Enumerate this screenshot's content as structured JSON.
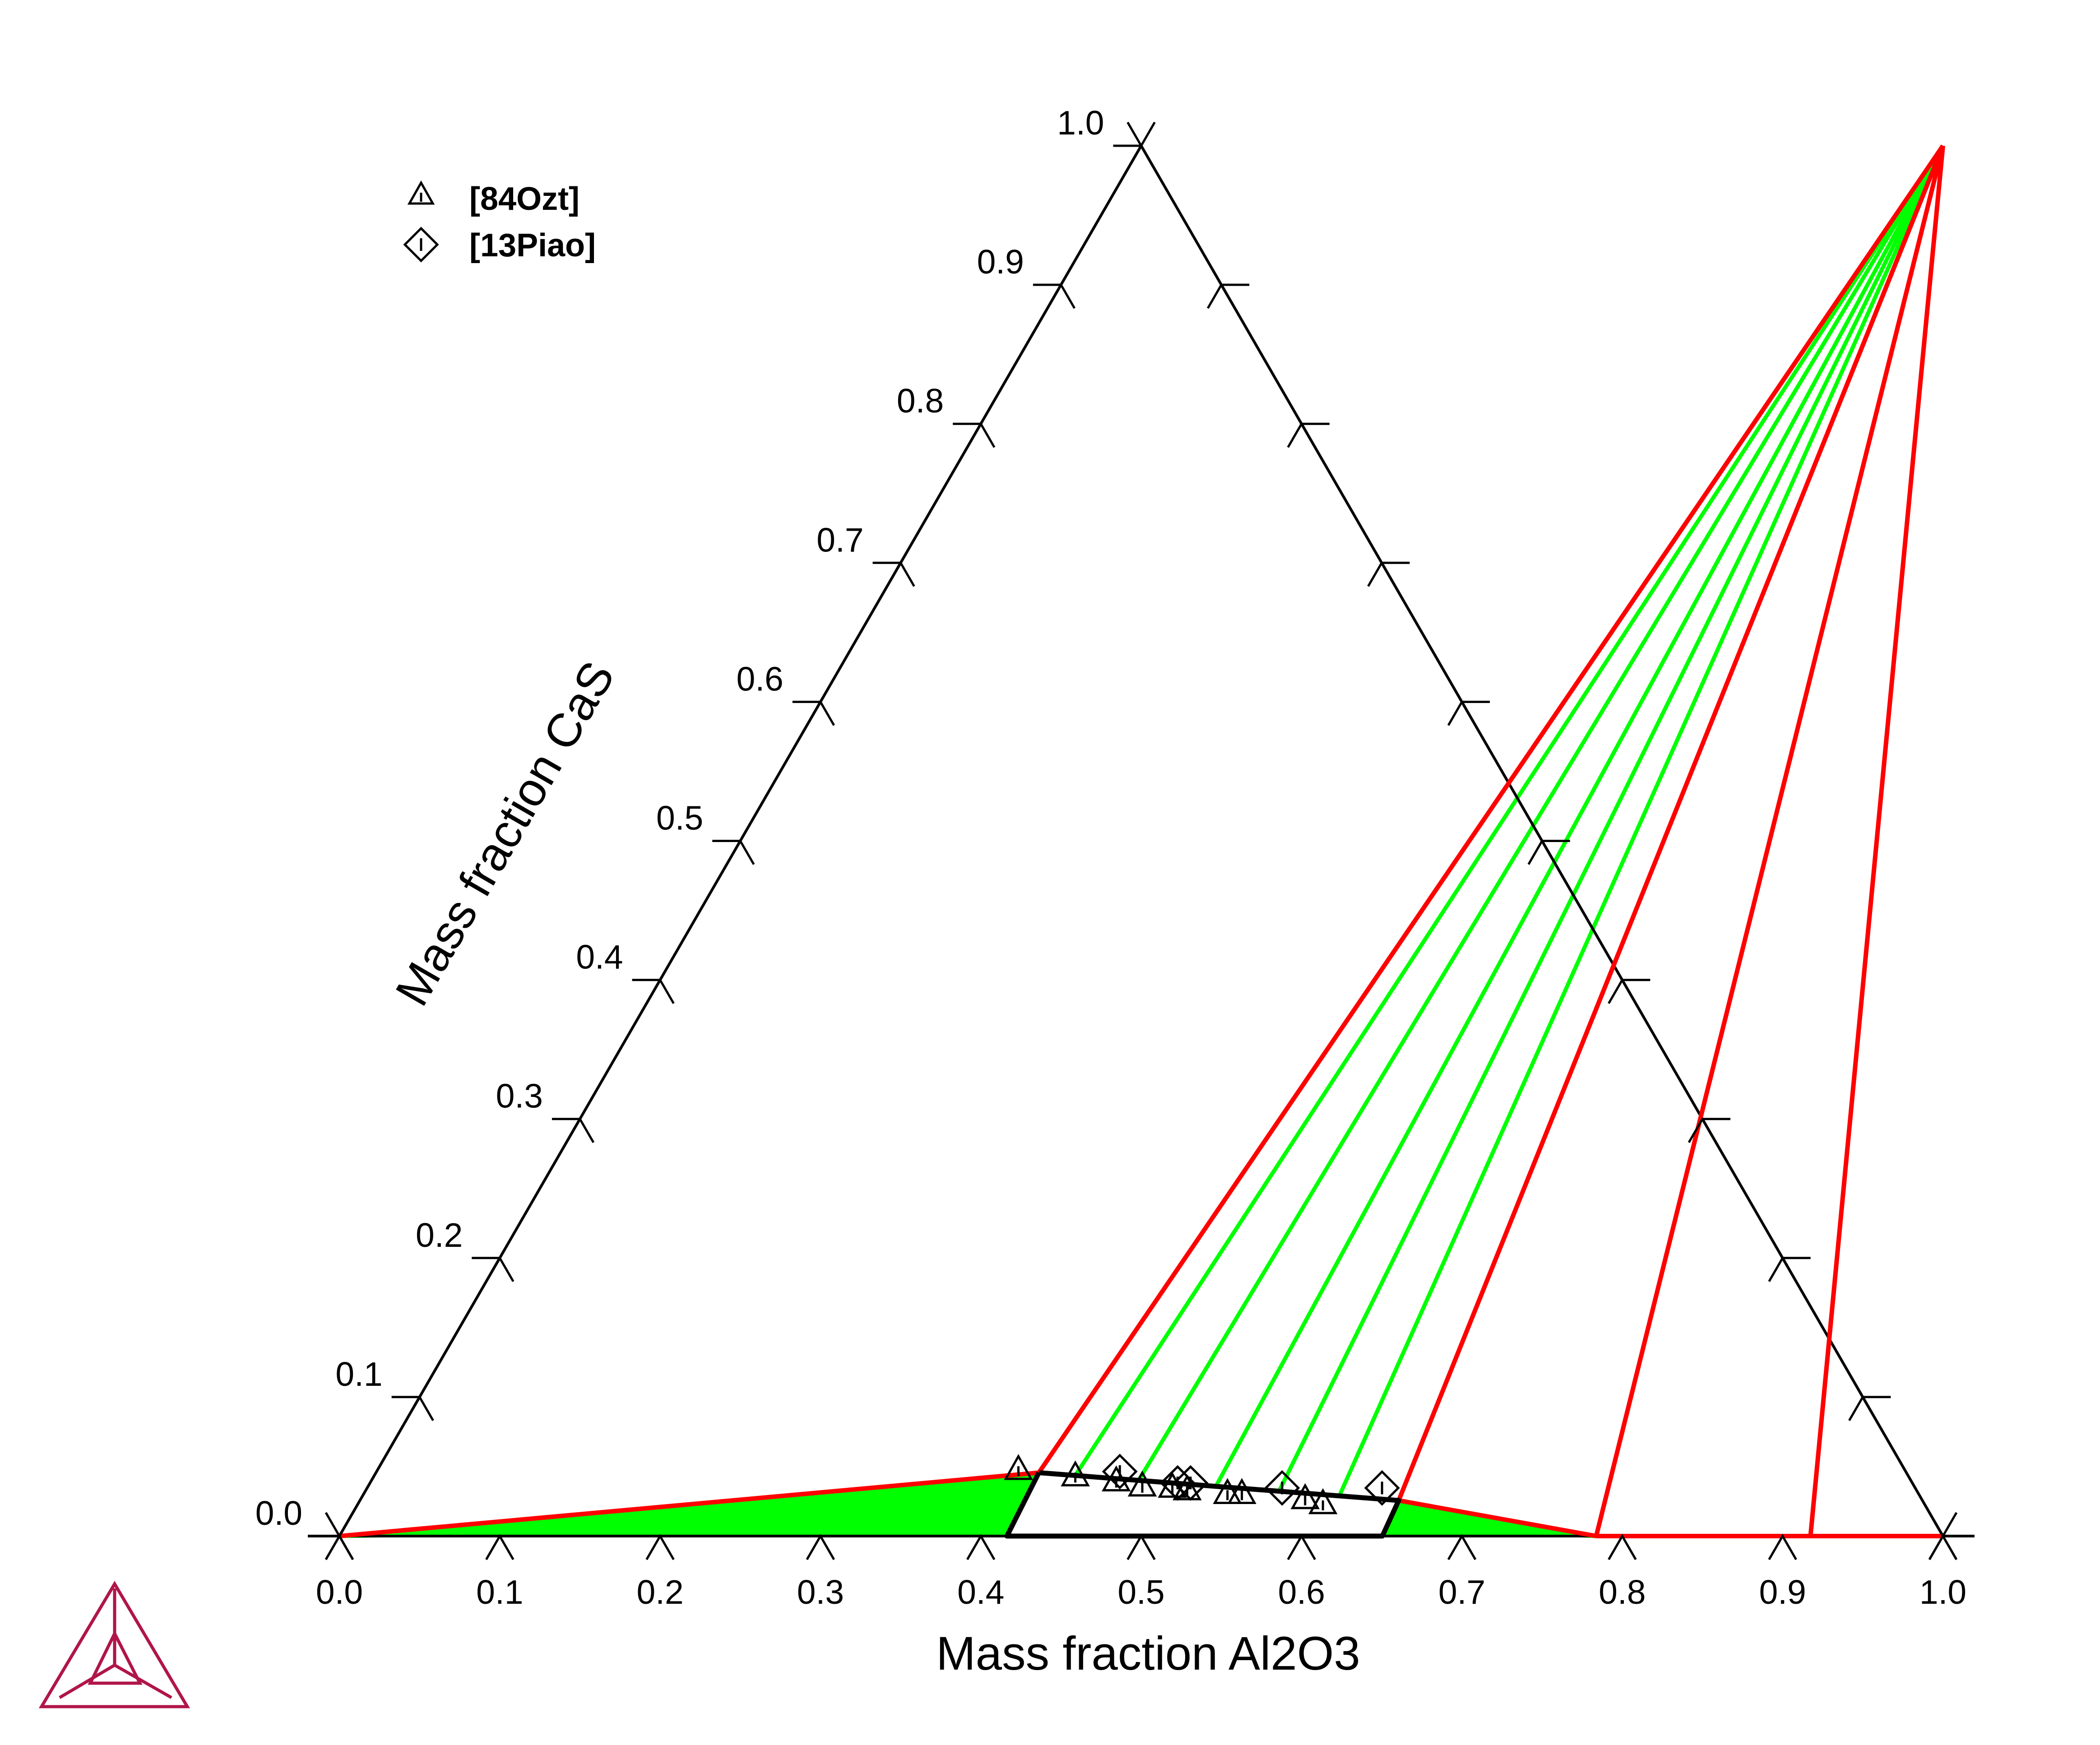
{
  "chart_data": {
    "type": "ternary",
    "title": "",
    "xlabel": "Mass fraction Al2O3",
    "ylabel": "Mass fraction CaS",
    "xlim": [
      0,
      1
    ],
    "ylim": [
      0,
      1
    ],
    "x_ticks": [
      "0.0",
      "0.1",
      "0.2",
      "0.3",
      "0.4",
      "0.5",
      "0.6",
      "0.7",
      "0.8",
      "0.9",
      "1.0"
    ],
    "y_ticks": [
      "0.0",
      "0.1",
      "0.2",
      "0.3",
      "0.4",
      "0.5",
      "0.6",
      "0.7",
      "0.8",
      "0.9",
      "1.0"
    ],
    "legend": [
      {
        "name": "[84Ozt]",
        "marker": "triangle"
      },
      {
        "name": "[13Piao]",
        "marker": "diamond"
      }
    ],
    "phase_boundaries": [
      {
        "color": "#ff0000",
        "points": [
          [
            0.0,
            0.0
          ],
          [
            0.4134,
            0.0456
          ]
        ]
      },
      {
        "color": "#ff0000",
        "points": [
          [
            0.4134,
            0.0456
          ],
          [
            0.5,
            1.0
          ]
        ]
      },
      {
        "color": "#ff0000",
        "points": [
          [
            0.6478,
            0.0256
          ],
          [
            0.5,
            1.0
          ]
        ]
      },
      {
        "color": "#ff0000",
        "points": [
          [
            0.6478,
            0.0256
          ],
          [
            0.7838,
            0.0
          ]
        ]
      },
      {
        "color": "#ff0000",
        "points": [
          [
            0.5,
            1.0
          ],
          [
            0.7838,
            0.0
          ]
        ]
      },
      {
        "color": "#ff0000",
        "points": [
          [
            0.5,
            1.0
          ],
          [
            0.9174,
            0.0
          ]
        ]
      },
      {
        "color": "#ff0000",
        "points": [
          [
            0.7838,
            0.0
          ],
          [
            1.0,
            0.0
          ]
        ]
      },
      {
        "color": "#000000",
        "points": [
          [
            0.4134,
            0.0456
          ],
          [
            0.4163,
            0.0
          ],
          [
            0.6504,
            0.0
          ],
          [
            0.6478,
            0.0256
          ],
          [
            0.4134,
            0.0456
          ]
        ]
      }
    ],
    "tie_lines": [
      {
        "color": "#00ff00",
        "points": [
          [
            0.0,
            0.0
          ],
          [
            0.4135,
            0.0364
          ]
        ]
      },
      {
        "color": "#00ff00",
        "points": [
          [
            0.0,
            0.0
          ],
          [
            0.4139,
            0.0255
          ]
        ]
      },
      {
        "color": "#00ff00",
        "points": [
          [
            0.0,
            0.0
          ],
          [
            0.4141,
            0.0164
          ]
        ]
      },
      {
        "color": "#00ff00",
        "points": [
          [
            0.0,
            0.0
          ],
          [
            0.4158,
            0.0073
          ]
        ]
      },
      {
        "color": "#00ff00",
        "points": [
          [
            0.4371,
            0.0436
          ],
          [
            0.5,
            1.0
          ]
        ]
      },
      {
        "color": "#00ff00",
        "points": [
          [
            0.4784,
            0.0401
          ],
          [
            0.5,
            1.0
          ]
        ]
      },
      {
        "color": "#00ff00",
        "points": [
          [
            0.5287,
            0.0365
          ],
          [
            0.5,
            1.0
          ]
        ]
      },
      {
        "color": "#00ff00",
        "points": [
          [
            0.5698,
            0.0328
          ],
          [
            0.5,
            1.0
          ]
        ]
      },
      {
        "color": "#00ff00",
        "points": [
          [
            0.6091,
            0.0292
          ],
          [
            0.5,
            1.0
          ]
        ]
      },
      {
        "color": "#00ff00",
        "points": [
          [
            0.6481,
            0.0219
          ],
          [
            0.7838,
            0.0
          ]
        ]
      },
      {
        "color": "#00ff00",
        "points": [
          [
            0.6484,
            0.0137
          ],
          [
            0.7838,
            0.0
          ]
        ]
      },
      {
        "color": "#00ff00",
        "points": [
          [
            0.6486,
            0.0064
          ],
          [
            0.7838,
            0.0
          ]
        ]
      }
    ],
    "series": [
      {
        "name": "[84Ozt]",
        "marker": "triangle",
        "points": [
          [
            0.3993,
            0.0483
          ],
          [
            0.4371,
            0.0437
          ],
          [
            0.4644,
            0.0401
          ],
          [
            0.4825,
            0.0364
          ],
          [
            0.5017,
            0.0355
          ],
          [
            0.5118,
            0.0337
          ],
          [
            0.5383,
            0.031
          ],
          [
            0.5473,
            0.031
          ],
          [
            0.5886,
            0.0273
          ],
          [
            0.6015,
            0.0237
          ]
        ]
      },
      {
        "name": "[13Piao]",
        "marker": "diamond",
        "points": [
          [
            0.4635,
            0.0464
          ],
          [
            0.5036,
            0.0382
          ],
          [
            0.5117,
            0.0382
          ],
          [
            0.5706,
            0.0346
          ],
          [
            0.6329,
            0.0346
          ]
        ]
      }
    ]
  }
}
